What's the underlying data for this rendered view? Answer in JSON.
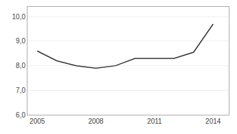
{
  "chart_data": {
    "type": "line",
    "x": [
      2005,
      2006,
      2007,
      2008,
      2009,
      2010,
      2011,
      2012,
      2013,
      2014
    ],
    "values": [
      8.6,
      8.2,
      8.0,
      7.9,
      8.0,
      8.3,
      8.3,
      8.3,
      8.55,
      9.7
    ],
    "color": "#333333",
    "xlim": [
      2004.5,
      2014.8
    ],
    "ylim": [
      6.0,
      10.4
    ],
    "xticks": [
      2005,
      2008,
      2011,
      2014
    ],
    "yticks": [
      {
        "value": 6.0,
        "label": "6,0"
      },
      {
        "value": 7.0,
        "label": "7,0"
      },
      {
        "value": 8.0,
        "label": "8,0"
      },
      {
        "value": 9.0,
        "label": "9,0"
      },
      {
        "value": 10.0,
        "label": "10,0"
      }
    ],
    "grid": "y"
  }
}
